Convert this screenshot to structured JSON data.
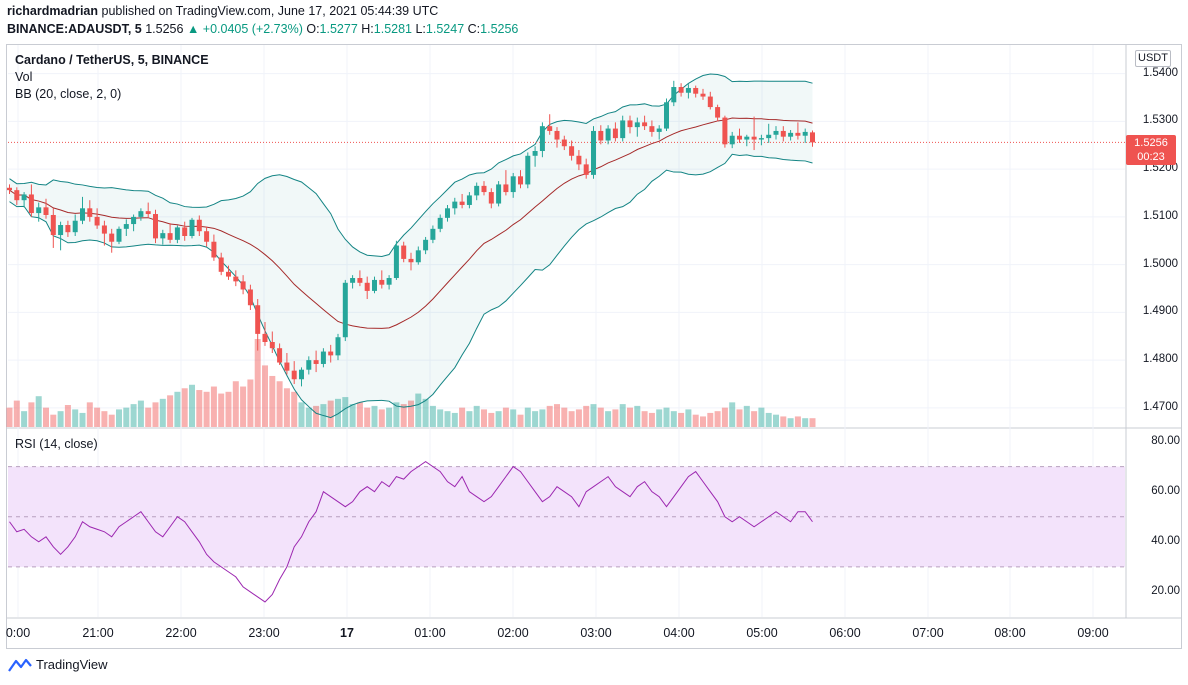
{
  "header": {
    "author": "richardmadrian",
    "published_text": "published on TradingView.com, June 17, 2021 05:44:39 UTC",
    "symbol": "BINANCE:ADAUSDT, 5",
    "last": "1.5256",
    "change": "▲ +0.0405 (+2.73%)",
    "open_label": "O:",
    "open": "1.5277",
    "high_label": "H:",
    "high": "1.5281",
    "low_label": "L:",
    "low": "1.5247",
    "close_label": "C:",
    "close": "1.5256"
  },
  "legend": {
    "title": "Cardano / TetherUS, 5, BINANCE",
    "vol": "Vol",
    "bb": "BB (20, close, 2, 0)",
    "rsi": "RSI (14, close)"
  },
  "price_axis": {
    "currency": "USDT",
    "ticks": [
      "1.5400",
      "1.5300",
      "1.5200",
      "1.5100",
      "1.5000",
      "1.4900",
      "1.4800",
      "1.4700"
    ],
    "current_price": "1.5256",
    "countdown": "00:23"
  },
  "rsi_axis": {
    "ticks": [
      "80.00",
      "60.00",
      "40.00",
      "20.00"
    ]
  },
  "time_axis": {
    "labels": [
      "0:00",
      "21:00",
      "22:00",
      "23:00",
      "17",
      "01:00",
      "02:00",
      "03:00",
      "04:00",
      "05:00",
      "06:00",
      "07:00",
      "08:00",
      "09:00"
    ]
  },
  "footer": {
    "brand": "TradingView"
  },
  "colors": {
    "up": "#26a69a",
    "down": "#ef5350",
    "basis": "#a52a2a",
    "band": "#138484",
    "rsi_line": "#9c27b0",
    "rsi_bg": "#f3e3fb"
  },
  "chart_data": {
    "type": "candlestick",
    "title": "Cardano / TetherUS, 5, BINANCE",
    "ylim": [
      1.466,
      1.546
    ],
    "rsi_ylim": [
      10,
      85
    ],
    "candles": [
      [
        1.5161,
        1.5168,
        1.5148,
        1.5156
      ],
      [
        1.5156,
        1.5162,
        1.5125,
        1.5135
      ],
      [
        1.5135,
        1.5152,
        1.512,
        1.5147
      ],
      [
        1.5147,
        1.5168,
        1.51,
        1.5108
      ],
      [
        1.5108,
        1.513,
        1.509,
        1.512
      ],
      [
        1.512,
        1.5138,
        1.5096,
        1.5104
      ],
      [
        1.5104,
        1.5118,
        1.5035,
        1.5062
      ],
      [
        1.5062,
        1.509,
        1.503,
        1.5083
      ],
      [
        1.5083,
        1.5092,
        1.5058,
        1.5068
      ],
      [
        1.5068,
        1.5105,
        1.506,
        1.5092
      ],
      [
        1.5092,
        1.5142,
        1.5085,
        1.5118
      ],
      [
        1.5118,
        1.5135,
        1.509,
        1.51
      ],
      [
        1.51,
        1.5118,
        1.5075,
        1.5082
      ],
      [
        1.5082,
        1.5092,
        1.504,
        1.5065
      ],
      [
        1.5065,
        1.5075,
        1.5025,
        1.5048
      ],
      [
        1.5048,
        1.508,
        1.5043,
        1.5075
      ],
      [
        1.5075,
        1.5095,
        1.506,
        1.5085
      ],
      [
        1.5085,
        1.5105,
        1.507,
        1.51
      ],
      [
        1.51,
        1.5118,
        1.5092,
        1.5112
      ],
      [
        1.5112,
        1.513,
        1.5098,
        1.5106
      ],
      [
        1.5106,
        1.5115,
        1.5045,
        1.5055
      ],
      [
        1.5055,
        1.5073,
        1.5042,
        1.5066
      ],
      [
        1.5066,
        1.5087,
        1.5045,
        1.5052
      ],
      [
        1.5052,
        1.5082,
        1.5045,
        1.5078
      ],
      [
        1.5078,
        1.509,
        1.505,
        1.506
      ],
      [
        1.506,
        1.5098,
        1.5055,
        1.5094
      ],
      [
        1.5094,
        1.5103,
        1.506,
        1.507
      ],
      [
        1.507,
        1.508,
        1.5038,
        1.5048
      ],
      [
        1.5048,
        1.5063,
        1.5008,
        1.5015
      ],
      [
        1.5015,
        1.5025,
        1.4978,
        1.4985
      ],
      [
        1.4985,
        1.4998,
        1.4968,
        1.4975
      ],
      [
        1.4975,
        1.4988,
        1.4955,
        1.4965
      ],
      [
        1.4965,
        1.4978,
        1.4938,
        1.4948
      ],
      [
        1.4948,
        1.4958,
        1.4905,
        1.4915
      ],
      [
        1.4915,
        1.4928,
        1.482,
        1.4855
      ],
      [
        1.4855,
        1.488,
        1.483,
        1.4838
      ],
      [
        1.4838,
        1.486,
        1.4815,
        1.4825
      ],
      [
        1.4825,
        1.4835,
        1.479,
        1.4795
      ],
      [
        1.4795,
        1.4815,
        1.477,
        1.4778
      ],
      [
        1.4778,
        1.4798,
        1.475,
        1.476
      ],
      [
        1.476,
        1.4785,
        1.4745,
        1.478
      ],
      [
        1.478,
        1.4808,
        1.477,
        1.48
      ],
      [
        1.48,
        1.482,
        1.4775,
        1.4792
      ],
      [
        1.4792,
        1.4825,
        1.4785,
        1.4818
      ],
      [
        1.4818,
        1.4832,
        1.4795,
        1.481
      ],
      [
        1.481,
        1.4855,
        1.48,
        1.4848
      ],
      [
        1.4848,
        1.4968,
        1.484,
        1.4962
      ],
      [
        1.4962,
        1.4978,
        1.495,
        1.4972
      ],
      [
        1.4972,
        1.4988,
        1.4955,
        1.4962
      ],
      [
        1.4962,
        1.4975,
        1.4928,
        1.4945
      ],
      [
        1.4945,
        1.4975,
        1.494,
        1.4968
      ],
      [
        1.4968,
        1.4988,
        1.495,
        1.4958
      ],
      [
        1.4958,
        1.4978,
        1.4948,
        1.4972
      ],
      [
        1.4972,
        1.505,
        1.4968,
        1.504
      ],
      [
        1.504,
        1.5048,
        1.5005,
        1.5012
      ],
      [
        1.5012,
        1.5025,
        1.4988,
        1.5005
      ],
      [
        1.5005,
        1.5038,
        1.5,
        1.503
      ],
      [
        1.503,
        1.5058,
        1.5022,
        1.5052
      ],
      [
        1.5052,
        1.5082,
        1.5045,
        1.5075
      ],
      [
        1.5075,
        1.5105,
        1.5068,
        1.5098
      ],
      [
        1.5098,
        1.5125,
        1.509,
        1.5118
      ],
      [
        1.5118,
        1.514,
        1.5105,
        1.5132
      ],
      [
        1.5132,
        1.5148,
        1.5118,
        1.5125
      ],
      [
        1.5125,
        1.5152,
        1.5118,
        1.5145
      ],
      [
        1.5145,
        1.5172,
        1.5135,
        1.5165
      ],
      [
        1.5165,
        1.5175,
        1.5145,
        1.5152
      ],
      [
        1.5152,
        1.516,
        1.5118,
        1.5128
      ],
      [
        1.5128,
        1.5175,
        1.5122,
        1.5168
      ],
      [
        1.5168,
        1.5198,
        1.5145,
        1.5152
      ],
      [
        1.5152,
        1.5192,
        1.514,
        1.5185
      ],
      [
        1.5185,
        1.5198,
        1.516,
        1.5168
      ],
      [
        1.5168,
        1.5235,
        1.516,
        1.5228
      ],
      [
        1.5228,
        1.5248,
        1.5205,
        1.5238
      ],
      [
        1.5238,
        1.5298,
        1.5225,
        1.529
      ],
      [
        1.529,
        1.5315,
        1.5272,
        1.528
      ],
      [
        1.528,
        1.5288,
        1.5245,
        1.5262
      ],
      [
        1.5262,
        1.527,
        1.524,
        1.5248
      ],
      [
        1.5248,
        1.526,
        1.5218,
        1.5228
      ],
      [
        1.5228,
        1.524,
        1.5198,
        1.521
      ],
      [
        1.521,
        1.5222,
        1.518,
        1.5188
      ],
      [
        1.5188,
        1.529,
        1.518,
        1.528
      ],
      [
        1.528,
        1.5292,
        1.5252,
        1.526
      ],
      [
        1.526,
        1.5292,
        1.5252,
        1.5285
      ],
      [
        1.5285,
        1.5298,
        1.5258,
        1.5265
      ],
      [
        1.5265,
        1.5312,
        1.5258,
        1.5302
      ],
      [
        1.5302,
        1.5312,
        1.5275,
        1.5288
      ],
      [
        1.5288,
        1.5308,
        1.5268,
        1.5298
      ],
      [
        1.5298,
        1.5312,
        1.5282,
        1.529
      ],
      [
        1.529,
        1.5302,
        1.5268,
        1.5278
      ],
      [
        1.5278,
        1.5292,
        1.5262,
        1.5285
      ],
      [
        1.5285,
        1.5348,
        1.528,
        1.534
      ],
      [
        1.534,
        1.5385,
        1.5332,
        1.5372
      ],
      [
        1.5372,
        1.538,
        1.5352,
        1.536
      ],
      [
        1.536,
        1.5378,
        1.5348,
        1.537
      ],
      [
        1.537,
        1.5375,
        1.535,
        1.5358
      ],
      [
        1.5358,
        1.5368,
        1.5345,
        1.5352
      ],
      [
        1.5352,
        1.5362,
        1.5325,
        1.533
      ],
      [
        1.533,
        1.5335,
        1.53,
        1.5308
      ],
      [
        1.5308,
        1.5312,
        1.5245,
        1.5252
      ],
      [
        1.5252,
        1.5278,
        1.5244,
        1.527
      ],
      [
        1.527,
        1.5285,
        1.5255,
        1.5262
      ],
      [
        1.5262,
        1.5272,
        1.5248,
        1.5268
      ],
      [
        1.5268,
        1.531,
        1.524,
        1.5262
      ],
      [
        1.5262,
        1.5272,
        1.525,
        1.5265
      ],
      [
        1.5265,
        1.5295,
        1.5255,
        1.5272
      ],
      [
        1.5272,
        1.529,
        1.5262,
        1.528
      ],
      [
        1.528,
        1.529,
        1.5258,
        1.5268
      ],
      [
        1.5268,
        1.5282,
        1.526,
        1.5276
      ],
      [
        1.5276,
        1.5298,
        1.5262,
        1.527
      ],
      [
        1.527,
        1.5285,
        1.5255,
        1.5278
      ],
      [
        1.5277,
        1.5281,
        1.5247,
        1.5256
      ]
    ],
    "volume": [
      22,
      30,
      18,
      28,
      35,
      22,
      14,
      18,
      25,
      20,
      16,
      28,
      22,
      18,
      14,
      20,
      22,
      26,
      30,
      22,
      28,
      32,
      36,
      40,
      44,
      48,
      42,
      40,
      46,
      38,
      40,
      52,
      46,
      54,
      100,
      70,
      58,
      52,
      44,
      40,
      28,
      22,
      24,
      26,
      30,
      32,
      34,
      26,
      28,
      22,
      24,
      20,
      22,
      28,
      26,
      30,
      38,
      32,
      24,
      20,
      18,
      16,
      22,
      18,
      24,
      20,
      16,
      18,
      22,
      20,
      14,
      22,
      18,
      20,
      24,
      26,
      22,
      18,
      20,
      24,
      26,
      22,
      18,
      20,
      26,
      22,
      24,
      18,
      16,
      20,
      22,
      18,
      16,
      20,
      14,
      12,
      16,
      18,
      22,
      28,
      20,
      24,
      18,
      22,
      16,
      14,
      12,
      10,
      12,
      10,
      10
    ],
    "rsi": [
      48,
      44,
      45,
      42,
      40,
      42,
      38,
      35,
      38,
      42,
      48,
      46,
      45,
      44,
      42,
      46,
      48,
      50,
      52,
      48,
      44,
      42,
      46,
      50,
      48,
      44,
      40,
      35,
      32,
      30,
      28,
      26,
      22,
      20,
      18,
      16,
      19,
      25,
      30,
      38,
      42,
      48,
      52,
      60,
      58,
      56,
      54,
      56,
      60,
      62,
      60,
      64,
      62,
      66,
      65,
      68,
      70,
      72,
      70,
      68,
      64,
      62,
      66,
      60,
      58,
      56,
      58,
      62,
      66,
      70,
      68,
      64,
      60,
      56,
      58,
      62,
      60,
      58,
      54,
      60,
      62,
      64,
      66,
      62,
      60,
      58,
      62,
      64,
      60,
      58,
      54,
      58,
      62,
      66,
      68,
      64,
      60,
      56,
      50,
      48,
      50,
      48,
      46,
      48,
      50,
      52,
      50,
      48,
      52,
      52,
      48
    ]
  }
}
